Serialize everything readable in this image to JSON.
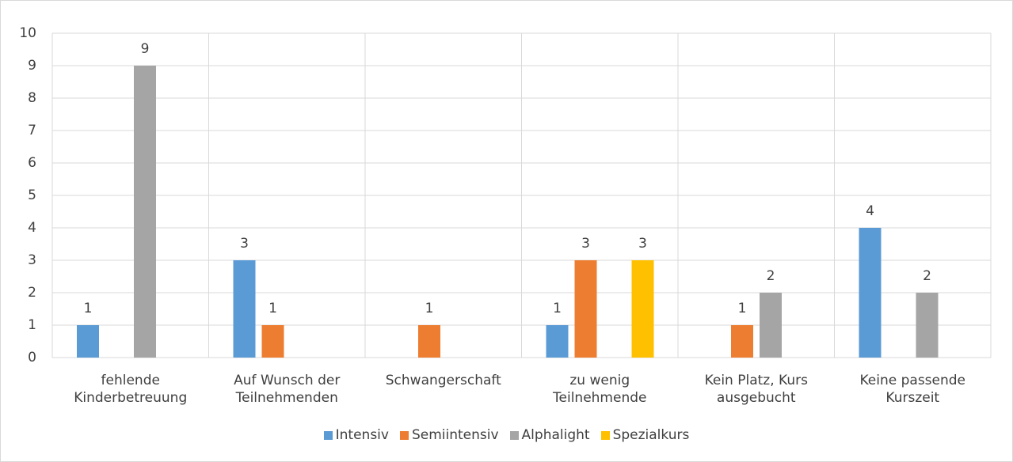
{
  "chart_data": {
    "type": "bar",
    "categories": [
      "fehlende Kinderbetreuung",
      "Auf Wunsch der Teilnehmenden",
      "Schwangerschaft",
      "zu wenig Teilnehmende",
      "Kein Platz, Kurs ausgebucht",
      "Keine passende Kurszeit"
    ],
    "series": [
      {
        "name": "Intensiv",
        "color": "#5b9bd5",
        "values": [
          1,
          3,
          null,
          1,
          null,
          4
        ]
      },
      {
        "name": "Semiintensiv",
        "color": "#ed7d31",
        "values": [
          null,
          1,
          1,
          3,
          1,
          null
        ]
      },
      {
        "name": "Alphalight",
        "color": "#a5a5a5",
        "values": [
          9,
          null,
          null,
          null,
          2,
          2
        ]
      },
      {
        "name": "Spezialkurs",
        "color": "#ffc000",
        "values": [
          null,
          null,
          null,
          3,
          null,
          null
        ]
      }
    ],
    "ylim": [
      0,
      10
    ],
    "yticks": [
      0,
      1,
      2,
      3,
      4,
      5,
      6,
      7,
      8,
      9,
      10
    ],
    "grid": true,
    "legend": "bottom"
  }
}
